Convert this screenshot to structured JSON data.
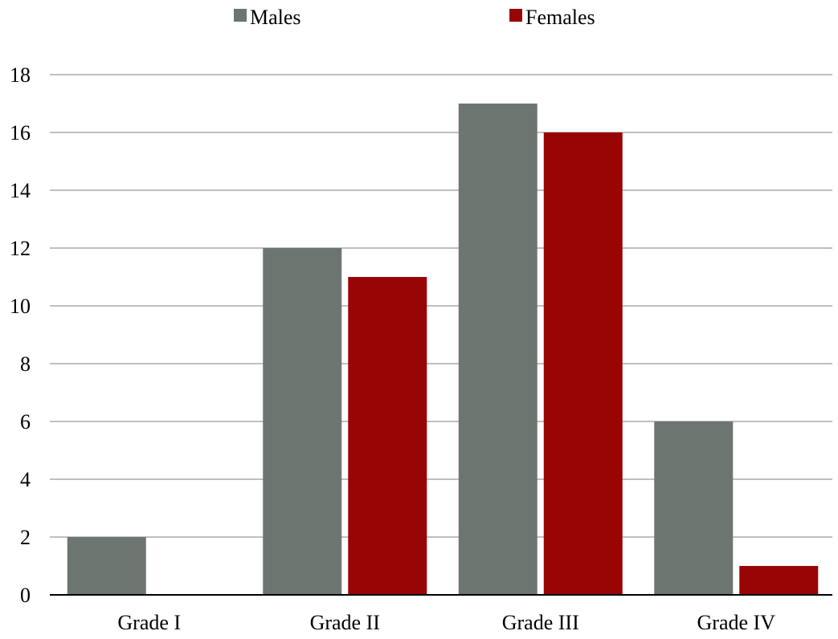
{
  "chart_data": {
    "type": "bar",
    "title": "",
    "xlabel": "",
    "ylabel": "",
    "categories": [
      "Grade I",
      "Grade II",
      "Grade III",
      "Grade IV"
    ],
    "series": [
      {
        "name": "Males",
        "values": [
          2,
          12,
          17,
          6
        ],
        "color": "#6d7571"
      },
      {
        "name": "Females",
        "values": [
          0,
          11,
          16,
          1
        ],
        "color": "#990505"
      }
    ],
    "ylim": [
      0,
      18
    ],
    "yticks": [
      0,
      2,
      4,
      6,
      8,
      10,
      12,
      14,
      16,
      18
    ],
    "grid": true,
    "legend": "top-center"
  }
}
